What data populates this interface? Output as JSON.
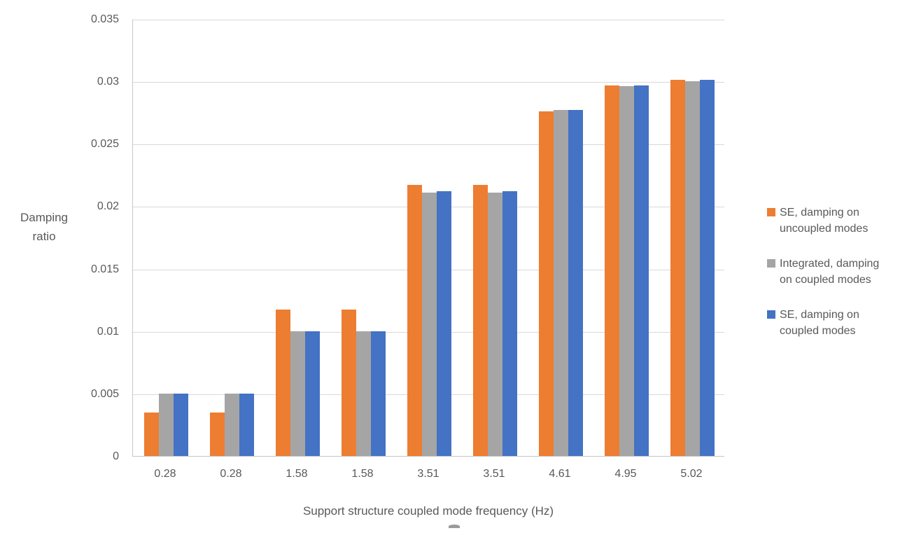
{
  "chart_data": {
    "type": "bar",
    "title": "",
    "xlabel": "Support structure coupled mode frequency (Hz)",
    "ylabel": "Damping ratio",
    "ylabel_lines": [
      "Damping",
      "ratio"
    ],
    "categories": [
      "0.28",
      "0.28",
      "1.58",
      "1.58",
      "3.51",
      "3.51",
      "4.61",
      "4.95",
      "5.02"
    ],
    "series": [
      {
        "name": "SE, damping on uncoupled modes",
        "color": "#ED7D31",
        "values": [
          0.0035,
          0.0035,
          0.0117,
          0.0117,
          0.0217,
          0.0217,
          0.0276,
          0.0297,
          0.0301
        ]
      },
      {
        "name": "Integrated, damping on coupled modes",
        "color": "#A5A5A5",
        "values": [
          0.005,
          0.005,
          0.01,
          0.01,
          0.0211,
          0.0211,
          0.0277,
          0.0296,
          0.03
        ]
      },
      {
        "name": "SE, damping on coupled modes",
        "color": "#4472C4",
        "values": [
          0.005,
          0.005,
          0.01,
          0.01,
          0.0212,
          0.0212,
          0.0277,
          0.0297,
          0.0301
        ]
      }
    ],
    "legend_lines": [
      [
        "SE, damping on",
        "uncoupled modes"
      ],
      [
        "Integrated, damping",
        "on coupled modes"
      ],
      [
        "SE, damping on",
        "coupled modes"
      ]
    ],
    "ylim": [
      0,
      0.035
    ],
    "yticks": [
      {
        "value": 0,
        "label": "0"
      },
      {
        "value": 0.005,
        "label": "0.005"
      },
      {
        "value": 0.01,
        "label": "0.01"
      },
      {
        "value": 0.015,
        "label": "0.015"
      },
      {
        "value": 0.02,
        "label": "0.02"
      },
      {
        "value": 0.025,
        "label": "0.025"
      },
      {
        "value": 0.03,
        "label": "0.03"
      },
      {
        "value": 0.035,
        "label": "0.035"
      }
    ],
    "grid": true,
    "legend_position": "right"
  },
  "colors": {
    "orange": "#ED7D31",
    "gray": "#A5A5A5",
    "blue": "#4472C4",
    "gridline": "#D9D9D9",
    "axis": "#C6C6C6",
    "text": "#595959"
  }
}
